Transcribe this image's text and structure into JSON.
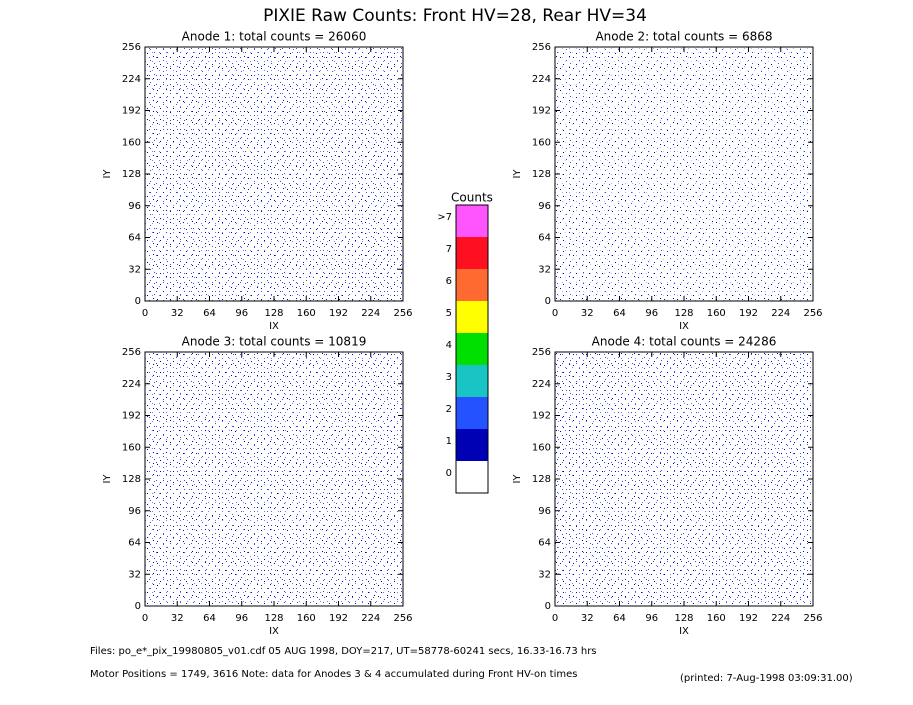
{
  "title": "PIXIE Raw Counts:  Front HV=28, Rear HV=34",
  "chart_data": [
    {
      "type": "heatmap",
      "title": "Anode 1: total counts = 26060",
      "xlabel": "IX",
      "ylabel": "IY",
      "xlim": [
        0,
        256
      ],
      "ylim": [
        0,
        256
      ],
      "xticks": [
        0,
        32,
        64,
        96,
        128,
        160,
        192,
        224,
        256
      ],
      "yticks": [
        0,
        32,
        64,
        96,
        128,
        160,
        192,
        224,
        256
      ]
    },
    {
      "type": "heatmap",
      "title": "Anode 2: total counts = 6868",
      "xlabel": "IX",
      "ylabel": "IY",
      "xlim": [
        0,
        256
      ],
      "ylim": [
        0,
        256
      ],
      "xticks": [
        0,
        32,
        64,
        96,
        128,
        160,
        192,
        224,
        256
      ],
      "yticks": [
        0,
        32,
        64,
        96,
        128,
        160,
        192,
        224,
        256
      ]
    },
    {
      "type": "heatmap",
      "title": "Anode 3: total counts = 10819",
      "xlabel": "IX",
      "ylabel": "IY",
      "xlim": [
        0,
        256
      ],
      "ylim": [
        0,
        256
      ],
      "xticks": [
        0,
        32,
        64,
        96,
        128,
        160,
        192,
        224,
        256
      ],
      "yticks": [
        0,
        32,
        64,
        96,
        128,
        160,
        192,
        224,
        256
      ]
    },
    {
      "type": "heatmap",
      "title": "Anode 4: total counts = 24286",
      "xlabel": "IX",
      "ylabel": "IY",
      "xlim": [
        0,
        256
      ],
      "ylim": [
        0,
        256
      ],
      "xticks": [
        0,
        32,
        64,
        96,
        128,
        160,
        192,
        224,
        256
      ],
      "yticks": [
        0,
        32,
        64,
        96,
        128,
        160,
        192,
        224,
        256
      ]
    }
  ],
  "colorbar": {
    "title": "Counts",
    "labels": [
      "0",
      "1",
      "2",
      "3",
      "4",
      "5",
      "6",
      "7",
      ">7"
    ],
    "colors": [
      "#ffffff",
      "#0000b4",
      "#2452ff",
      "#18c4c4",
      "#00e000",
      "#ffff00",
      "#ff6a30",
      "#ff1020",
      "#ff55ff"
    ]
  },
  "footer": {
    "files": "Files: po_e*_pix_19980805_v01.cdf     05 AUG 1998, DOY=217, UT=58778-60241 secs, 16.33-16.73 hrs",
    "motor": "Motor Positions = 1749, 3616   Note: data for Anodes 3 & 4 accumulated during Front HV-on times",
    "printed": "(printed:  7-Aug-1998 03:09:31.00)"
  }
}
